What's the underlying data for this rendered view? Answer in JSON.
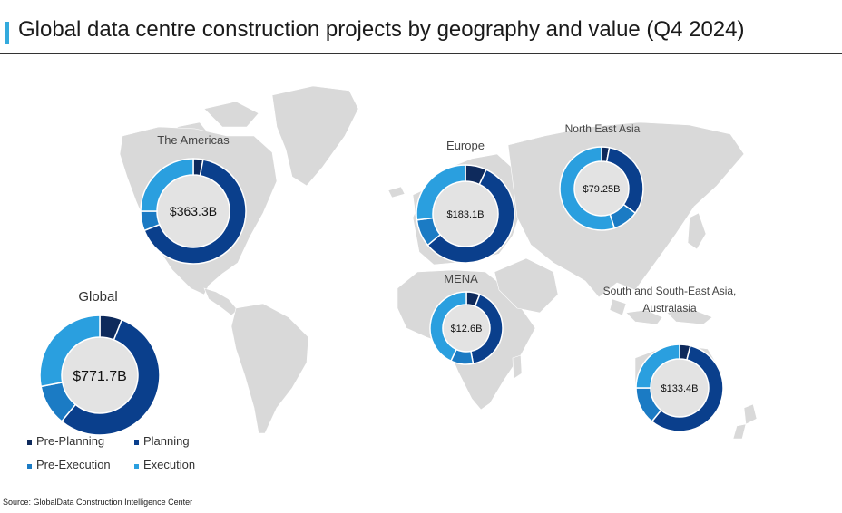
{
  "title": "Global data centre construction projects by geography and value (Q4 2024)",
  "source": "Source: GlobalData Construction Intelligence Center",
  "colors": {
    "pre_planning": "#0e2a5c",
    "planning": "#0a3f8c",
    "pre_execution": "#1b7bc4",
    "execution": "#2a9fdf",
    "map": "#d9d9d9",
    "accent": "#33aadd"
  },
  "legend": [
    {
      "label": "Pre-Planning",
      "key": "pre_planning"
    },
    {
      "label": "Planning",
      "key": "planning"
    },
    {
      "label": "Pre-Execution",
      "key": "pre_execution"
    },
    {
      "label": "Execution",
      "key": "execution"
    }
  ],
  "chart_data": {
    "type": "pie",
    "variant": "donut",
    "stages": [
      "Pre-Planning",
      "Planning",
      "Pre-Execution",
      "Execution"
    ],
    "regions": [
      {
        "id": "global",
        "label": "Global",
        "total": "$771.7B",
        "shares": [
          0.06,
          0.55,
          0.11,
          0.28
        ]
      },
      {
        "id": "americas",
        "label": "The Americas",
        "total": "$363.3B",
        "shares": [
          0.03,
          0.66,
          0.06,
          0.25
        ]
      },
      {
        "id": "europe",
        "label": "Europe",
        "total": "$183.1B",
        "shares": [
          0.07,
          0.57,
          0.09,
          0.27
        ]
      },
      {
        "id": "nea",
        "label": "North East Asia",
        "total": "$79.25B",
        "shares": [
          0.03,
          0.32,
          0.1,
          0.55
        ]
      },
      {
        "id": "mena",
        "label": "MENA",
        "total": "$12.6B",
        "shares": [
          0.06,
          0.41,
          0.1,
          0.43
        ]
      },
      {
        "id": "ssea",
        "label": "South and South-East Asia, Australasia",
        "label_lines": [
          "South and South-East Asia,",
          "Australasia"
        ],
        "total": "$133.4B",
        "shares": [
          0.04,
          0.57,
          0.14,
          0.25
        ]
      }
    ]
  }
}
